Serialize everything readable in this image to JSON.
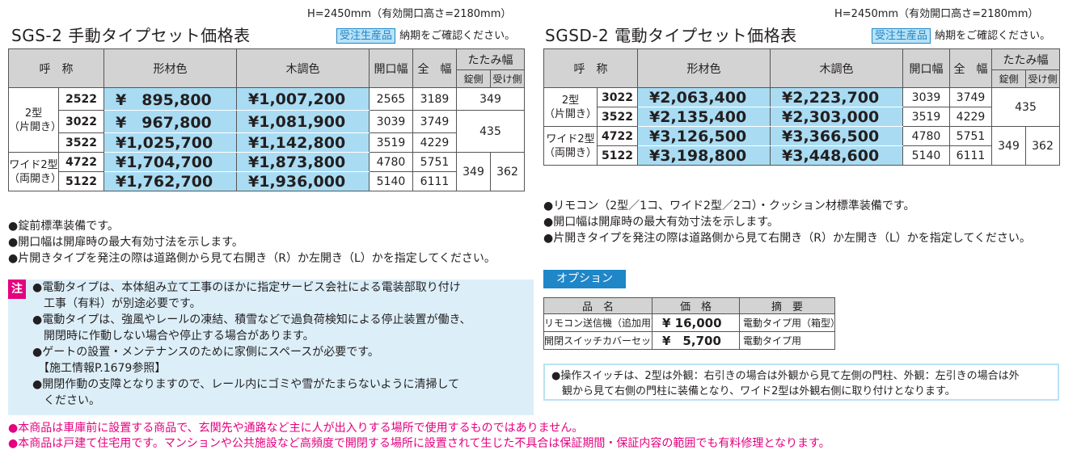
{
  "left": {
    "height_note": "H=2450mm（有効開口高さ=2180mm）",
    "title": "SGS-2 手動タイプセット価格表",
    "badge": "受注生産品",
    "confirm": "納期をご確認ください。",
    "header": {
      "name": "呼　称",
      "color1": "形材色",
      "color2": "木調色",
      "opening": "開口幅",
      "overall": "全　幅",
      "folded": "たたみ幅",
      "lock_side": "錠側",
      "receive_side": "受け側"
    },
    "groups": [
      {
        "label_1": "2型",
        "label_2": "（片開き）"
      },
      {
        "label_1": "ワイド2型",
        "label_2": "（両開き）"
      }
    ],
    "rows": [
      {
        "code": "2522",
        "price1": "¥　895,800",
        "price2": "¥1,007,200",
        "opening": "2565",
        "overall": "3189"
      },
      {
        "code": "3022",
        "price1": "¥　967,800",
        "price2": "¥1,081,900",
        "opening": "3039",
        "overall": "3749"
      },
      {
        "code": "3522",
        "price1": "¥1,025,700",
        "price2": "¥1,142,800",
        "opening": "3519",
        "overall": "4229"
      },
      {
        "code": "4722",
        "price1": "¥1,704,700",
        "price2": "¥1,873,800",
        "opening": "4780",
        "overall": "5751"
      },
      {
        "code": "5122",
        "price1": "¥1,762,700",
        "price2": "¥1,936,000",
        "opening": "5140",
        "overall": "6111"
      }
    ],
    "folded_values": {
      "a": "349",
      "b": "435",
      "c": "349",
      "d": "362"
    },
    "notes": [
      "●錠前標準装備です。",
      "●開口幅は開扉時の最大有効寸法を示します。",
      "●片開きタイプを発注の際は道路側から見て右開き（R）か左開き（L）かを指定してください。"
    ],
    "caution_mark": "注",
    "caution_lines": [
      "●電動タイプは、本体組み立て工事のほかに指定サービス会社による電装部取り付け",
      "　工事（有料）が別途必要です。",
      "●電動タイプは、強風やレールの凍結、積雪などで過負荷検知による停止装置が働き、",
      "　開閉時に作動しない場合や停止する場合があります。",
      "●ゲートの設置・メンテナンスのために家側にスペースが必要です。",
      "　【施工情報P.1679参照】",
      "●開閉作動の支障となりますので、レール内にゴミや雪がたまらないように清掃して",
      "　ください。"
    ]
  },
  "right": {
    "height_note": "H=2450mm（有効開口高さ=2180mm）",
    "title": "SGSD-2 電動タイプセット価格表",
    "badge": "受注生産品",
    "confirm": "納期をご確認ください。",
    "header": {
      "name": "呼　称",
      "color1": "形材色",
      "color2": "木調色",
      "opening": "開口幅",
      "overall": "全　幅",
      "folded": "たたみ幅",
      "lock_side": "錠側",
      "receive_side": "受け側"
    },
    "groups": [
      {
        "label_1": "2型",
        "label_2": "（片開き）"
      },
      {
        "label_1": "ワイド2型",
        "label_2": "（両開き）"
      }
    ],
    "rows": [
      {
        "code": "3022",
        "price1": "¥2,063,400",
        "price2": "¥2,223,700",
        "opening": "3039",
        "overall": "3749"
      },
      {
        "code": "3522",
        "price1": "¥2,135,400",
        "price2": "¥2,303,000",
        "opening": "3519",
        "overall": "4229"
      },
      {
        "code": "4722",
        "price1": "¥3,126,500",
        "price2": "¥3,366,500",
        "opening": "4780",
        "overall": "5751"
      },
      {
        "code": "5122",
        "price1": "¥3,198,800",
        "price2": "¥3,448,600",
        "opening": "5140",
        "overall": "6111"
      }
    ],
    "folded_values": {
      "a": "435",
      "b": "349",
      "c": "362"
    },
    "notes": [
      "●リモコン（2型／1コ、ワイド2型／2コ）・クッション材標準装備です。",
      "●開口幅は開扉時の最大有効寸法を示します。",
      "●片開きタイプを発注の際は道路側から見て右開き（R）か左開き（L）かを指定してください。"
    ]
  },
  "option": {
    "title": "オプション",
    "headers": {
      "name": "品　名",
      "price": "価　格",
      "summary": "摘　要"
    },
    "items": [
      {
        "name": "リモコン送信機（追加用）",
        "price": "¥ 16,000",
        "summary": "電動タイプ用（箱型）"
      },
      {
        "name": "開閉スイッチカバーセット",
        "price": "¥　5,700",
        "summary": "電動タイプ用"
      }
    ],
    "note_lines": [
      "●操作スイッチは、2型は外観：右引きの場合は外観から見て左側の門柱、外観：左引きの場合は外",
      "　観から見て右側の門柱に装備となり、ワイド2型は外観右側に取り付けとなります。"
    ]
  },
  "footer": [
    "●本商品は車庫前に設置する商品で、玄関先や通路など主に人が出入りする場所で使用するものではありません。",
    "●本商品は戸建て住宅用です。マンションや公共施設など高頻度で開閉する場所に設置されて生じた不具合は保証期間・保証内容の範囲でも有料修理となります。"
  ]
}
